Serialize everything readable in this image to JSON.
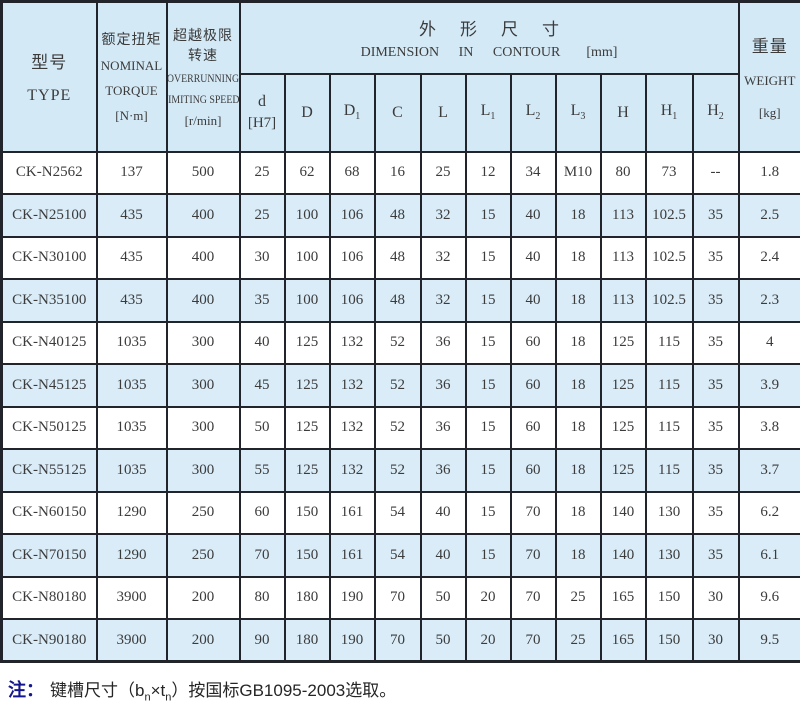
{
  "page": {
    "background": "#ffffff",
    "table_blue": "#d4e9f6",
    "row_alt_blue": "#d9ecf8",
    "border_color": "#22242b",
    "text_color": "#3b3b3b",
    "note_accent_color": "#15158c"
  },
  "table": {
    "header": {
      "type": {
        "zh": "型号",
        "en": "TYPE"
      },
      "torque": {
        "zh": "额定扭矩",
        "en1": "NOMINAL",
        "en2": "TORQUE",
        "unit": "[N·m]"
      },
      "speed": {
        "zh": "超越极限转速",
        "en1": "OVERRUNNING",
        "en2": "LIMITING SPEEDS",
        "unit": "[r/min]"
      },
      "dimension_group": {
        "zh": "外形尺寸",
        "en": "DIMENSION IN CONTOUR",
        "unit": "[mm]"
      },
      "weight": {
        "zh": "重量",
        "en": "WEIGHT",
        "unit": "[kg]"
      }
    },
    "dim_columns": [
      {
        "id": "d",
        "label": "d",
        "sub": "",
        "line2": "[H7]"
      },
      {
        "id": "D",
        "label": "D",
        "sub": "",
        "line2": ""
      },
      {
        "id": "D1",
        "label": "D",
        "sub": "1",
        "line2": ""
      },
      {
        "id": "C",
        "label": "C",
        "sub": "",
        "line2": ""
      },
      {
        "id": "L",
        "label": "L",
        "sub": "",
        "line2": ""
      },
      {
        "id": "L1",
        "label": "L",
        "sub": "1",
        "line2": ""
      },
      {
        "id": "L2",
        "label": "L",
        "sub": "2",
        "line2": ""
      },
      {
        "id": "L3",
        "label": "L",
        "sub": "3",
        "line2": ""
      },
      {
        "id": "H",
        "label": "H",
        "sub": "",
        "line2": ""
      },
      {
        "id": "H1",
        "label": "H",
        "sub": "1",
        "line2": ""
      },
      {
        "id": "H2",
        "label": "H",
        "sub": "2",
        "line2": ""
      }
    ],
    "rows": [
      {
        "type": "CK-N2562",
        "torque": "137",
        "speed": "500",
        "values": [
          "25",
          "62",
          "68",
          "16",
          "25",
          "12",
          "34",
          "M10",
          "80",
          "73",
          "--"
        ],
        "weight": "1.8"
      },
      {
        "type": "CK-N25100",
        "torque": "435",
        "speed": "400",
        "values": [
          "25",
          "100",
          "106",
          "48",
          "32",
          "15",
          "40",
          "18",
          "113",
          "102.5",
          "35"
        ],
        "weight": "2.5"
      },
      {
        "type": "CK-N30100",
        "torque": "435",
        "speed": "400",
        "values": [
          "30",
          "100",
          "106",
          "48",
          "32",
          "15",
          "40",
          "18",
          "113",
          "102.5",
          "35"
        ],
        "weight": "2.4"
      },
      {
        "type": "CK-N35100",
        "torque": "435",
        "speed": "400",
        "values": [
          "35",
          "100",
          "106",
          "48",
          "32",
          "15",
          "40",
          "18",
          "113",
          "102.5",
          "35"
        ],
        "weight": "2.3"
      },
      {
        "type": "CK-N40125",
        "torque": "1035",
        "speed": "300",
        "values": [
          "40",
          "125",
          "132",
          "52",
          "36",
          "15",
          "60",
          "18",
          "125",
          "115",
          "35"
        ],
        "weight": "4"
      },
      {
        "type": "CK-N45125",
        "torque": "1035",
        "speed": "300",
        "values": [
          "45",
          "125",
          "132",
          "52",
          "36",
          "15",
          "60",
          "18",
          "125",
          "115",
          "35"
        ],
        "weight": "3.9"
      },
      {
        "type": "CK-N50125",
        "torque": "1035",
        "speed": "300",
        "values": [
          "50",
          "125",
          "132",
          "52",
          "36",
          "15",
          "60",
          "18",
          "125",
          "115",
          "35"
        ],
        "weight": "3.8"
      },
      {
        "type": "CK-N55125",
        "torque": "1035",
        "speed": "300",
        "values": [
          "55",
          "125",
          "132",
          "52",
          "36",
          "15",
          "60",
          "18",
          "125",
          "115",
          "35"
        ],
        "weight": "3.7"
      },
      {
        "type": "CK-N60150",
        "torque": "1290",
        "speed": "250",
        "values": [
          "60",
          "150",
          "161",
          "54",
          "40",
          "15",
          "70",
          "18",
          "140",
          "130",
          "35"
        ],
        "weight": "6.2"
      },
      {
        "type": "CK-N70150",
        "torque": "1290",
        "speed": "250",
        "values": [
          "70",
          "150",
          "161",
          "54",
          "40",
          "15",
          "70",
          "18",
          "140",
          "130",
          "35"
        ],
        "weight": "6.1"
      },
      {
        "type": "CK-N80180",
        "torque": "3900",
        "speed": "200",
        "values": [
          "80",
          "180",
          "190",
          "70",
          "50",
          "20",
          "70",
          "25",
          "165",
          "150",
          "30"
        ],
        "weight": "9.6"
      },
      {
        "type": "CK-N90180",
        "torque": "3900",
        "speed": "200",
        "values": [
          "90",
          "180",
          "190",
          "70",
          "50",
          "20",
          "70",
          "25",
          "165",
          "150",
          "30"
        ],
        "weight": "9.5"
      }
    ]
  },
  "note": {
    "prefix": "注：",
    "part1": "键槽尺寸（b",
    "sub1": "n",
    "part2": "×t",
    "sub2": "n",
    "part3": "）按国标GB1095-2003选取。"
  }
}
